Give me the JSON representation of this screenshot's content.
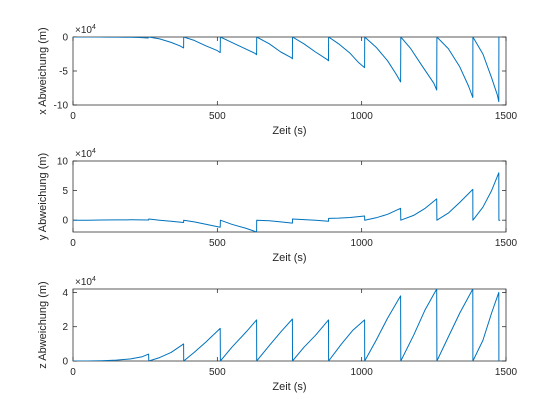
{
  "colors": {
    "series": "#0072BD",
    "axis": "#262626",
    "background": "#ffffff"
  },
  "chart_data": [
    {
      "type": "line",
      "xlabel": "Zeit (s)",
      "ylabel": "x Abweichung (m)",
      "multiplier_base": "×10",
      "multiplier_exp": "4",
      "xlim": [
        0,
        1500
      ],
      "ylim": [
        -100000,
        0
      ],
      "xticks": [
        0,
        500,
        1000,
        1500
      ],
      "yticks": [
        0,
        -50000,
        -100000
      ],
      "yticklabels": [
        "0",
        "-5",
        "-10"
      ],
      "series": [
        {
          "x": [
            0,
            30,
            60,
            90,
            120,
            150,
            180,
            200,
            230,
            260,
            262,
            300,
            340,
            370,
            383,
            383.5,
            420,
            460,
            500,
            510,
            510.5,
            550,
            600,
            630,
            636,
            636.5,
            680,
            720,
            755,
            760,
            760.5,
            800,
            840,
            880,
            885,
            885.5,
            920,
            960,
            990,
            1010,
            1010.5,
            1050,
            1090,
            1120,
            1135,
            1135.5,
            1170,
            1210,
            1250,
            1260,
            1260.5,
            1300,
            1340,
            1370,
            1385,
            1385.5,
            1420,
            1450,
            1470,
            1475,
            1475.5,
            1480
          ],
          "y": [
            0,
            0,
            50,
            0,
            -100,
            -150,
            -300,
            -400,
            -800,
            -1500,
            0,
            -2800,
            -8000,
            -13000,
            -16000,
            0,
            -5000,
            -13000,
            -20000,
            -23000,
            0,
            -8000,
            -18000,
            -24000,
            -26000,
            0,
            -10000,
            -22000,
            -30000,
            -32000,
            0,
            -10000,
            -22000,
            -33000,
            -35000,
            0,
            -10000,
            -24000,
            -38000,
            -45000,
            0,
            -15000,
            -35000,
            -55000,
            -66000,
            0,
            -17000,
            -43000,
            -68000,
            -78000,
            0,
            -17000,
            -44000,
            -72000,
            -89000,
            0,
            -25000,
            -60000,
            -85000,
            -95000,
            0,
            0
          ]
        }
      ]
    },
    {
      "type": "line",
      "xlabel": "Zeit (s)",
      "ylabel": "y Abweichung (m)",
      "multiplier_base": "×10",
      "multiplier_exp": "4",
      "xlim": [
        0,
        1500
      ],
      "ylim": [
        -20000,
        100000
      ],
      "xticks": [
        0,
        500,
        1000,
        1500
      ],
      "yticks": [
        0,
        50000,
        100000
      ],
      "yticklabels": [
        "0",
        "5",
        "10"
      ],
      "series": [
        {
          "x": [
            0,
            50,
            100,
            150,
            200,
            262,
            262.5,
            300,
            340,
            383,
            383.5,
            420,
            460,
            510,
            510.5,
            550,
            600,
            636,
            636.5,
            680,
            720,
            760,
            760.5,
            800,
            840,
            885,
            885.5,
            920,
            960,
            1010,
            1010.5,
            1050,
            1090,
            1135,
            1135.5,
            1180,
            1220,
            1260,
            1260.5,
            1300,
            1340,
            1385,
            1385.5,
            1420,
            1450,
            1475,
            1475.5,
            1480
          ],
          "y": [
            0,
            0,
            200,
            500,
            600,
            300,
            2000,
            0,
            -2000,
            -4000,
            0,
            -3000,
            -7000,
            -12000,
            0,
            -7000,
            -14000,
            -20000,
            0,
            -1000,
            -3000,
            -5000,
            2000,
            1000,
            0,
            -2000,
            3000,
            3500,
            4500,
            7000,
            0,
            4000,
            10000,
            20000,
            0,
            8000,
            20000,
            36000,
            0,
            12000,
            30000,
            52000,
            0,
            22000,
            50000,
            80000,
            0,
            0
          ]
        }
      ]
    },
    {
      "type": "line",
      "xlabel": "Zeit (s)",
      "ylabel": "z Abweichung (m)",
      "multiplier_base": "×10",
      "multiplier_exp": "4",
      "xlim": [
        0,
        1500
      ],
      "ylim": [
        0,
        42000
      ],
      "xticks": [
        0,
        500,
        1000,
        1500
      ],
      "yticks": [
        0,
        20000,
        40000
      ],
      "yticklabels": [
        "0",
        "2",
        "4"
      ],
      "series": [
        {
          "x": [
            0,
            50,
            100,
            150,
            200,
            240,
            262,
            262.5,
            300,
            340,
            383,
            383.5,
            420,
            460,
            510,
            510.5,
            550,
            600,
            636,
            636.5,
            680,
            720,
            760,
            760.5,
            800,
            840,
            885,
            885.5,
            930,
            970,
            1010,
            1010.5,
            1050,
            1090,
            1135,
            1135.5,
            1180,
            1220,
            1260,
            1260.5,
            1300,
            1340,
            1385,
            1385.5,
            1420,
            1450,
            1475,
            1475.5,
            1480
          ],
          "y": [
            0,
            0,
            200,
            500,
            1200,
            2500,
            4000,
            0,
            2000,
            5000,
            10000,
            0,
            5000,
            11000,
            19000,
            0,
            8000,
            17000,
            24000,
            0,
            9000,
            17000,
            24500,
            0,
            8000,
            15000,
            24000,
            0,
            10000,
            18000,
            24000,
            0,
            12000,
            25000,
            38000,
            0,
            15000,
            30000,
            42000,
            0,
            14000,
            28000,
            42000,
            0,
            12000,
            28000,
            40000,
            0,
            0
          ]
        }
      ]
    }
  ]
}
